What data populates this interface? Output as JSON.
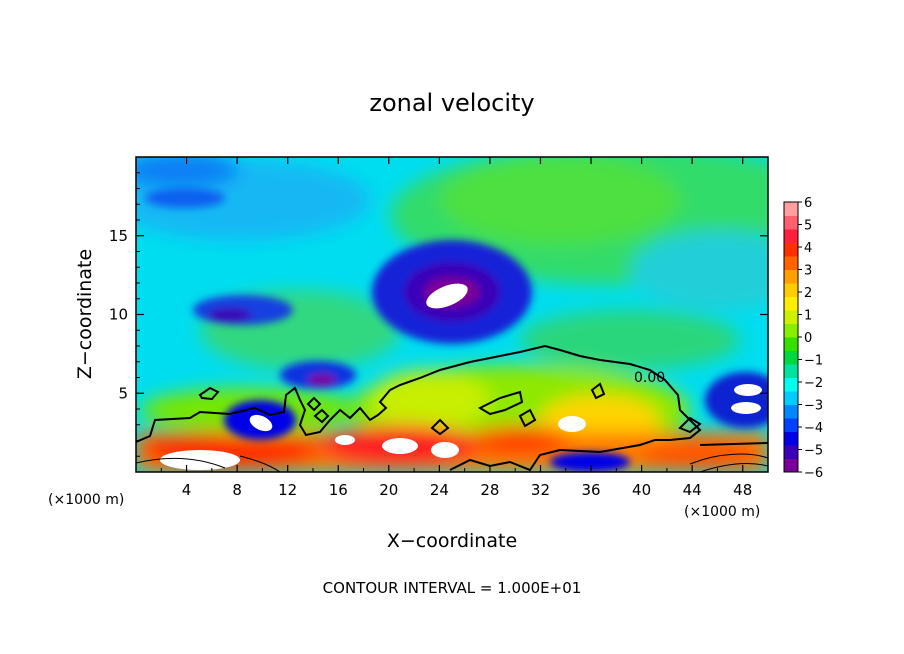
{
  "chart_data": {
    "type": "heatmap",
    "title": "zonal velocity",
    "xlabel": "X−coordinate",
    "ylabel": "Z−coordinate",
    "x_unit_left": "(×1000 m)",
    "x_unit_right": "(×1000 m)",
    "footer": "CONTOUR INTERVAL = 1.000E+01",
    "x_ticks": [
      "4",
      "8",
      "12",
      "16",
      "20",
      "24",
      "28",
      "32",
      "36",
      "40",
      "44",
      "48"
    ],
    "y_ticks": [
      "5",
      "10",
      "15"
    ],
    "xlim": [
      0,
      50
    ],
    "ylim": [
      0,
      20
    ],
    "contour_label": "0.00",
    "colorbar": {
      "levels": [
        "6",
        "5",
        "4",
        "3",
        "2",
        "1",
        "0",
        "−1",
        "−2",
        "−3",
        "−4",
        "−5",
        "−6"
      ],
      "range": [
        -6,
        6
      ],
      "colors": [
        "#7a0099",
        "#3a00b8",
        "#0000e6",
        "#0040ff",
        "#0088ff",
        "#00ccff",
        "#00ffee",
        "#00e3a0",
        "#00d840",
        "#33e000",
        "#88ee00",
        "#ccf200",
        "#ffee00",
        "#ffcc00",
        "#ffa000",
        "#ff6400",
        "#ff3000",
        "#ff2040",
        "#ff6070",
        "#ff9f9f"
      ]
    },
    "features": [
      {
        "x": 24.5,
        "z": 12.5,
        "value": -5,
        "note": "strong negative core"
      },
      {
        "x": 9.5,
        "z": 3.0,
        "value": -5
      },
      {
        "x": 14.5,
        "z": 6.0,
        "value": -4.5
      },
      {
        "x": 48.0,
        "z": 5.0,
        "value": -5
      },
      {
        "x": 8.5,
        "z": 10.0,
        "value": -4
      },
      {
        "x": 33.0,
        "z": 4.5,
        "value": 0
      },
      {
        "x": 20.0,
        "z": 1.5,
        "value": 5
      },
      {
        "x": 6.0,
        "z": 1.0,
        "value": 5
      }
    ]
  }
}
